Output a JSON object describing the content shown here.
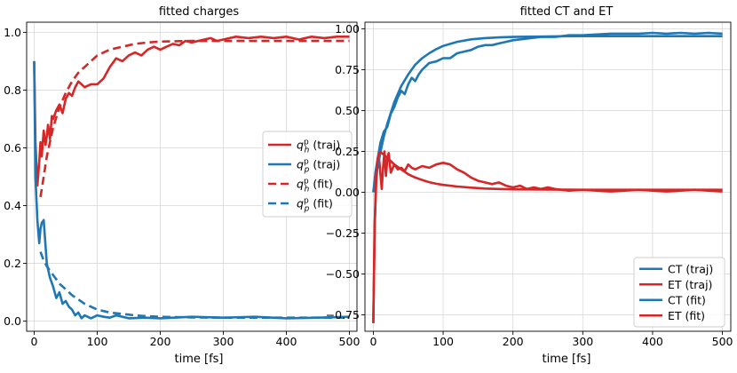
{
  "chart_data": [
    {
      "type": "line",
      "title": "fitted charges",
      "xlabel": "time [fs]",
      "ylabel": "",
      "xlim": [
        -12,
        512
      ],
      "ylim": [
        -0.035,
        1.035
      ],
      "xticks": [
        0,
        100,
        200,
        300,
        400,
        500
      ],
      "xtick_labels": [
        "0",
        "100",
        "200",
        "300",
        "400",
        "500"
      ],
      "yticks": [
        0.0,
        0.2,
        0.4,
        0.6,
        0.8,
        1.0
      ],
      "ytick_labels": [
        "0.0",
        "0.2",
        "0.4",
        "0.6",
        "0.8",
        "1.0"
      ],
      "grid": true,
      "legend_position": "center-right",
      "series": [
        {
          "name": "q_h^p (traj)",
          "legend_base": "q",
          "legend_sup": "p",
          "legend_sub": "h",
          "legend_suffix": " (traj)",
          "color": "#d62728",
          "style": "solid",
          "x": [
            0,
            2,
            5,
            8,
            10,
            12,
            15,
            18,
            20,
            22,
            25,
            28,
            30,
            35,
            40,
            45,
            50,
            55,
            60,
            65,
            70,
            75,
            80,
            90,
            100,
            110,
            120,
            130,
            140,
            150,
            160,
            170,
            180,
            190,
            200,
            210,
            220,
            230,
            240,
            250,
            260,
            270,
            280,
            290,
            300,
            320,
            340,
            360,
            380,
            400,
            420,
            440,
            460,
            480,
            500
          ],
          "y": [
            0.9,
            0.62,
            0.47,
            0.55,
            0.62,
            0.57,
            0.66,
            0.61,
            0.64,
            0.68,
            0.63,
            0.71,
            0.7,
            0.73,
            0.75,
            0.72,
            0.77,
            0.79,
            0.78,
            0.81,
            0.83,
            0.82,
            0.81,
            0.82,
            0.82,
            0.84,
            0.88,
            0.91,
            0.9,
            0.92,
            0.93,
            0.92,
            0.94,
            0.95,
            0.94,
            0.95,
            0.96,
            0.955,
            0.97,
            0.965,
            0.97,
            0.975,
            0.98,
            0.97,
            0.975,
            0.985,
            0.98,
            0.985,
            0.98,
            0.985,
            0.975,
            0.985,
            0.98,
            0.985,
            0.985
          ]
        },
        {
          "name": "q_p^p (traj)",
          "legend_base": "q",
          "legend_sup": "p",
          "legend_sub": "p",
          "legend_suffix": " (traj)",
          "color": "#1f77b4",
          "style": "solid",
          "x": [
            0,
            2,
            5,
            8,
            10,
            12,
            15,
            18,
            20,
            22,
            25,
            30,
            35,
            40,
            45,
            50,
            55,
            60,
            65,
            70,
            75,
            80,
            90,
            100,
            110,
            120,
            130,
            140,
            150,
            175,
            200,
            250,
            300,
            350,
            400,
            450,
            500
          ],
          "y": [
            0.9,
            0.5,
            0.35,
            0.27,
            0.32,
            0.34,
            0.35,
            0.26,
            0.2,
            0.18,
            0.15,
            0.12,
            0.08,
            0.1,
            0.06,
            0.07,
            0.05,
            0.04,
            0.02,
            0.03,
            0.01,
            0.02,
            0.01,
            0.02,
            0.015,
            0.012,
            0.02,
            0.015,
            0.01,
            0.012,
            0.01,
            0.015,
            0.012,
            0.015,
            0.01,
            0.012,
            0.015
          ]
        },
        {
          "name": "q_h^p (fit)",
          "legend_base": "q",
          "legend_sup": "p",
          "legend_sub": "h",
          "legend_suffix": " (fit)",
          "color": "#d62728",
          "style": "dashed",
          "x": [
            10,
            15,
            20,
            30,
            40,
            50,
            60,
            70,
            80,
            90,
            100,
            120,
            140,
            160,
            180,
            200,
            250,
            300,
            350,
            400,
            450,
            500
          ],
          "y": [
            0.43,
            0.5,
            0.57,
            0.67,
            0.74,
            0.79,
            0.83,
            0.86,
            0.88,
            0.9,
            0.92,
            0.94,
            0.95,
            0.96,
            0.965,
            0.968,
            0.97,
            0.97,
            0.97,
            0.97,
            0.97,
            0.97
          ]
        },
        {
          "name": "q_p^p (fit)",
          "legend_base": "q",
          "legend_sup": "p",
          "legend_sub": "p",
          "legend_suffix": " (fit)",
          "color": "#1f77b4",
          "style": "dashed",
          "x": [
            10,
            15,
            20,
            30,
            40,
            50,
            60,
            70,
            80,
            100,
            120,
            140,
            160,
            180,
            200,
            250,
            300,
            350,
            400,
            450,
            500
          ],
          "y": [
            0.24,
            0.21,
            0.19,
            0.16,
            0.13,
            0.11,
            0.09,
            0.075,
            0.06,
            0.04,
            0.03,
            0.025,
            0.02,
            0.017,
            0.015,
            0.013,
            0.012,
            0.012,
            0.012,
            0.012,
            0.012
          ]
        }
      ]
    },
    {
      "type": "line",
      "title": "fitted CT and ET",
      "xlabel": "time [fs]",
      "ylabel": "",
      "xlim": [
        -12,
        512
      ],
      "ylim": [
        -0.85,
        1.04
      ],
      "xticks": [
        0,
        100,
        200,
        300,
        400,
        500
      ],
      "xtick_labels": [
        "0",
        "100",
        "200",
        "300",
        "400",
        "500"
      ],
      "yticks": [
        -0.75,
        -0.5,
        -0.25,
        0.0,
        0.25,
        0.5,
        0.75,
        1.0
      ],
      "ytick_labels": [
        "−0.75",
        "−0.50",
        "−0.25",
        "0.00",
        "0.25",
        "0.50",
        "0.75",
        "1.00"
      ],
      "grid": true,
      "legend_position": "lower-right",
      "series": [
        {
          "name": "CT (traj)",
          "color": "#1f77b4",
          "style": "solid",
          "x": [
            0,
            3,
            6,
            10,
            15,
            20,
            25,
            30,
            35,
            40,
            45,
            50,
            55,
            60,
            65,
            70,
            80,
            90,
            100,
            110,
            120,
            130,
            140,
            150,
            160,
            170,
            180,
            190,
            200,
            220,
            240,
            260,
            280,
            300,
            320,
            340,
            360,
            380,
            400,
            420,
            440,
            460,
            480,
            500
          ],
          "y": [
            0.0,
            0.12,
            0.2,
            0.3,
            0.37,
            0.4,
            0.48,
            0.52,
            0.58,
            0.62,
            0.6,
            0.66,
            0.7,
            0.68,
            0.72,
            0.75,
            0.79,
            0.8,
            0.82,
            0.82,
            0.85,
            0.86,
            0.87,
            0.89,
            0.9,
            0.9,
            0.91,
            0.92,
            0.93,
            0.94,
            0.95,
            0.95,
            0.96,
            0.96,
            0.965,
            0.97,
            0.97,
            0.97,
            0.975,
            0.97,
            0.975,
            0.97,
            0.975,
            0.97
          ]
        },
        {
          "name": "ET (traj)",
          "color": "#d62728",
          "style": "solid",
          "x": [
            0,
            1,
            2,
            4,
            6,
            8,
            10,
            12,
            14,
            16,
            18,
            20,
            22,
            25,
            30,
            35,
            40,
            45,
            50,
            55,
            60,
            70,
            80,
            90,
            100,
            110,
            120,
            130,
            140,
            150,
            160,
            170,
            180,
            190,
            200,
            210,
            220,
            230,
            240,
            250,
            260,
            280,
            300,
            320,
            340,
            360,
            380,
            400,
            420,
            440,
            460,
            480,
            500
          ],
          "y": [
            -0.8,
            -0.5,
            -0.2,
            0.05,
            0.18,
            0.22,
            0.12,
            0.02,
            0.15,
            0.25,
            0.1,
            0.2,
            0.24,
            0.12,
            0.17,
            0.14,
            0.15,
            0.13,
            0.17,
            0.15,
            0.14,
            0.16,
            0.15,
            0.17,
            0.18,
            0.17,
            0.14,
            0.12,
            0.09,
            0.07,
            0.06,
            0.05,
            0.06,
            0.04,
            0.03,
            0.04,
            0.02,
            0.03,
            0.02,
            0.03,
            0.02,
            0.01,
            0.015,
            0.01,
            0.005,
            0.01,
            0.015,
            0.01,
            0.005,
            0.01,
            0.015,
            0.01,
            0.005
          ]
        },
        {
          "name": "CT (fit)",
          "color": "#1f77b4",
          "style": "solid",
          "x": [
            0,
            5,
            10,
            15,
            20,
            30,
            40,
            50,
            60,
            70,
            80,
            90,
            100,
            120,
            140,
            160,
            180,
            200,
            250,
            300,
            350,
            400,
            450,
            500
          ],
          "y": [
            0.0,
            0.13,
            0.24,
            0.34,
            0.42,
            0.55,
            0.65,
            0.72,
            0.78,
            0.82,
            0.85,
            0.875,
            0.895,
            0.92,
            0.935,
            0.943,
            0.947,
            0.95,
            0.953,
            0.955,
            0.955,
            0.955,
            0.955,
            0.955
          ]
        },
        {
          "name": "ET (fit)",
          "color": "#d62728",
          "style": "solid",
          "x": [
            0,
            2,
            4,
            6,
            8,
            10,
            12,
            15,
            20,
            25,
            30,
            40,
            50,
            60,
            70,
            80,
            90,
            100,
            120,
            140,
            160,
            180,
            200,
            250,
            300,
            350,
            400,
            450,
            500
          ],
          "y": [
            -0.8,
            -0.2,
            0.1,
            0.2,
            0.24,
            0.245,
            0.24,
            0.23,
            0.21,
            0.19,
            0.17,
            0.14,
            0.11,
            0.09,
            0.075,
            0.062,
            0.052,
            0.045,
            0.035,
            0.028,
            0.023,
            0.02,
            0.018,
            0.016,
            0.015,
            0.015,
            0.015,
            0.015,
            0.015
          ]
        }
      ]
    }
  ]
}
